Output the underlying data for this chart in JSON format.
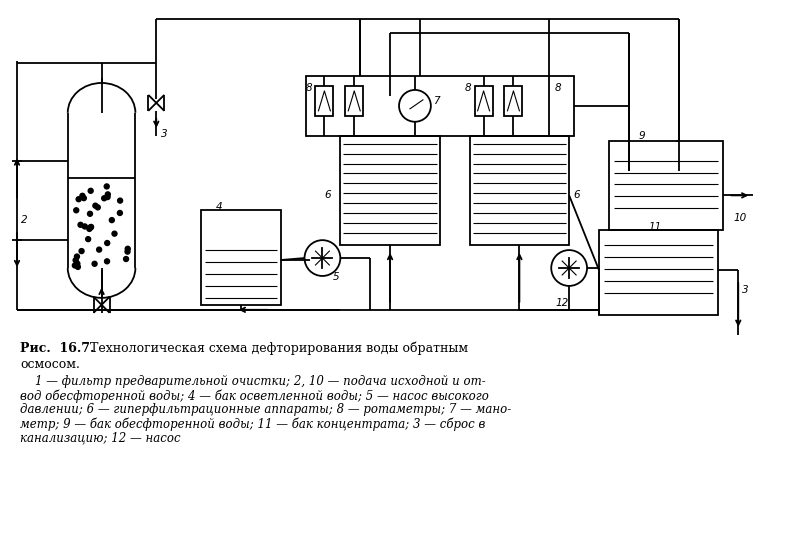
{
  "title_bold": "Рис.  16.7.",
  "title_normal": "  Технологическая схема дефторирования воды обратным",
  "title_line2": "осмосом.",
  "caption_italic": "    1 — фильтр предварительной очистки; 2, 10 — подача исходной и от-\nвод обесфторенной воды; 4 — бак осветленной воды; 5 — насос высокого\nдавлении; 6 — гиперфильтрационные аппараты; 8 — ротаметры; 7 — мано-\nметр; 9 — бак обесфторенной воды; 11 — бак концентрата; 3 — сброс в\nканализацию; 12 — насос",
  "bg_color": "#ffffff",
  "lw": 1.3,
  "figsize": [
    8.09,
    5.38
  ],
  "dpi": 100
}
